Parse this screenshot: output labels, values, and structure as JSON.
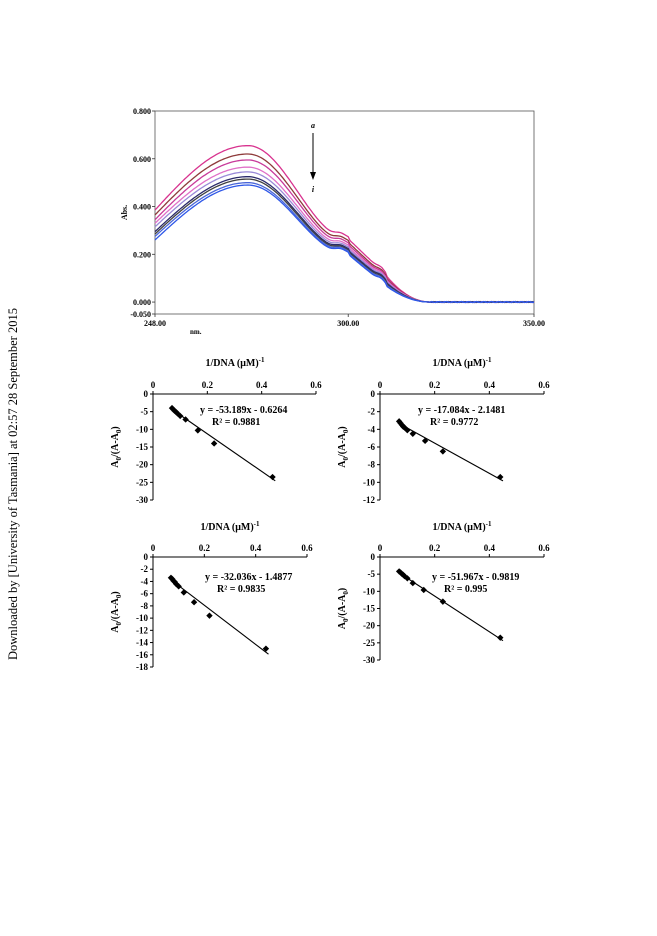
{
  "side_note": "Downloaded by [University of Tasmania] at 02:57 28 September 2015",
  "chart_data": [
    {
      "type": "line",
      "title": "",
      "ylabel": "Abs.",
      "xlabel": "nm.",
      "xlim": [
        248,
        350
      ],
      "ylim": [
        -0.05,
        0.8
      ],
      "xticks": [
        248,
        300,
        350
      ],
      "xtick_labels": [
        "248.00",
        "300.00",
        "350.00"
      ],
      "yticks": [
        -0.05,
        0,
        0.2,
        0.4,
        0.6,
        0.8
      ],
      "ytick_labels": [
        "-0.050",
        "0.000",
        "0.200",
        "0.400",
        "0.600",
        "0.800"
      ],
      "annotations": {
        "top": "a",
        "bottom": "i"
      },
      "grid": false,
      "series": [
        {
          "color": "#d8338f",
          "peak": 0.655,
          "start": 0.385,
          "s300": 0.265,
          "s310": 0.115
        },
        {
          "color": "#8e3b3b",
          "peak": 0.62,
          "start": 0.365,
          "s300": 0.25,
          "s310": 0.105
        },
        {
          "color": "#c83a9a",
          "peak": 0.595,
          "start": 0.345,
          "s300": 0.24,
          "s310": 0.1
        },
        {
          "color": "#e070c8",
          "peak": 0.565,
          "start": 0.33,
          "s300": 0.23,
          "s310": 0.095
        },
        {
          "color": "#9a8ad8",
          "peak": 0.545,
          "start": 0.315,
          "s300": 0.222,
          "s310": 0.09
        },
        {
          "color": "#2a2a6a",
          "peak": 0.525,
          "start": 0.295,
          "s300": 0.215,
          "s310": 0.085
        },
        {
          "color": "#404040",
          "peak": 0.515,
          "start": 0.285,
          "s300": 0.21,
          "s310": 0.08
        },
        {
          "color": "#4a66d8",
          "peak": 0.5,
          "start": 0.275,
          "s300": 0.205,
          "s310": 0.075
        },
        {
          "color": "#2f58e8",
          "peak": 0.49,
          "start": 0.26,
          "s300": 0.2,
          "s310": 0.07
        }
      ]
    },
    {
      "type": "scatter",
      "xlabel": "1/DNA (μM)-1",
      "ylabel": "A0/(A-A0)",
      "xlim": [
        0,
        0.6
      ],
      "ylim": [
        -30,
        0
      ],
      "xticks": [
        0,
        0.2,
        0.4,
        0.6
      ],
      "xtick_labels": [
        "0",
        "0.2",
        "0.4",
        "0.6"
      ],
      "yticks": [
        0,
        -5,
        -10,
        -15,
        -20,
        -25,
        -30
      ],
      "ytick_labels": [
        "0",
        "-5",
        "-10",
        "-15",
        "-20",
        "-25",
        "-30"
      ],
      "x": [
        0.07,
        0.075,
        0.08,
        0.085,
        0.09,
        0.1,
        0.12,
        0.165,
        0.225,
        0.44
      ],
      "y": [
        -4,
        -4.4,
        -4.8,
        -5.1,
        -5.5,
        -6.2,
        -7.2,
        -10.3,
        -14,
        -23.5
      ],
      "fit": {
        "slope": -53.189,
        "intercept": -0.6264
      },
      "equation": "y = -53.189x - 0.6264",
      "r2": "R² = 0.9881"
    },
    {
      "type": "scatter",
      "xlabel": "1/DNA (μM)-1",
      "ylabel": "A0/(A-A0)",
      "xlim": [
        0,
        0.6
      ],
      "ylim": [
        -12,
        0
      ],
      "xticks": [
        0,
        0.2,
        0.4,
        0.6
      ],
      "xtick_labels": [
        "0",
        "0.2",
        "0.4",
        "0.6"
      ],
      "yticks": [
        0,
        -2,
        -4,
        -6,
        -8,
        -10,
        -12
      ],
      "ytick_labels": [
        "0",
        "-2",
        "-4",
        "-6",
        "-8",
        "-10",
        "-12"
      ],
      "x": [
        0.07,
        0.075,
        0.08,
        0.085,
        0.09,
        0.1,
        0.12,
        0.165,
        0.23,
        0.44
      ],
      "y": [
        -3.1,
        -3.3,
        -3.5,
        -3.7,
        -3.8,
        -4.1,
        -4.5,
        -5.3,
        -6.5,
        -9.4
      ],
      "fit": {
        "slope": -17.084,
        "intercept": -2.1481
      },
      "equation": "y = -17.084x - 2.1481",
      "r2": "R² = 0.9772"
    },
    {
      "type": "scatter",
      "xlabel": "1/DNA (μM)-1",
      "ylabel": "A0/(A-A0)",
      "xlim": [
        0,
        0.6
      ],
      "ylim": [
        -18,
        0
      ],
      "xticks": [
        0,
        0.2,
        0.4,
        0.6
      ],
      "xtick_labels": [
        "0",
        "0.2",
        "0.4",
        "0.6"
      ],
      "yticks": [
        0,
        -2,
        -4,
        -6,
        -8,
        -10,
        -12,
        -14,
        -16,
        -18
      ],
      "ytick_labels": [
        "0",
        "-2",
        "-4",
        "-6",
        "-8",
        "-10",
        "-12",
        "-14",
        "-16",
        "-18"
      ],
      "x": [
        0.07,
        0.075,
        0.08,
        0.085,
        0.09,
        0.1,
        0.12,
        0.16,
        0.22,
        0.44
      ],
      "y": [
        -3.4,
        -3.6,
        -3.9,
        -4.1,
        -4.4,
        -4.8,
        -5.8,
        -7.4,
        -9.6,
        -15
      ],
      "fit": {
        "slope": -32.036,
        "intercept": -1.4877
      },
      "equation": "y = -32.036x - 1.4877",
      "r2": "R² = 0.9835"
    },
    {
      "type": "scatter",
      "xlabel": "1/DNA (μM)-1",
      "ylabel": "A0/(A-A0)",
      "xlim": [
        0,
        0.6
      ],
      "ylim": [
        -30,
        0
      ],
      "xticks": [
        0,
        0.2,
        0.4,
        0.6
      ],
      "xtick_labels": [
        "0",
        "0.2",
        "0.4",
        "0.6"
      ],
      "yticks": [
        0,
        -5,
        -10,
        -15,
        -20,
        -25,
        -30
      ],
      "ytick_labels": [
        "0",
        "-5",
        "-10",
        "-15",
        "-20",
        "-25",
        "-30"
      ],
      "x": [
        0.07,
        0.075,
        0.08,
        0.085,
        0.09,
        0.1,
        0.12,
        0.16,
        0.23,
        0.44
      ],
      "y": [
        -4.2,
        -4.5,
        -4.9,
        -5.2,
        -5.6,
        -6.2,
        -7.6,
        -9.6,
        -13,
        -23.5
      ],
      "fit": {
        "slope": -51.967,
        "intercept": -0.9819
      },
      "equation": "y = -51.967x - 0.9819",
      "r2": "R² = 0.995"
    }
  ]
}
